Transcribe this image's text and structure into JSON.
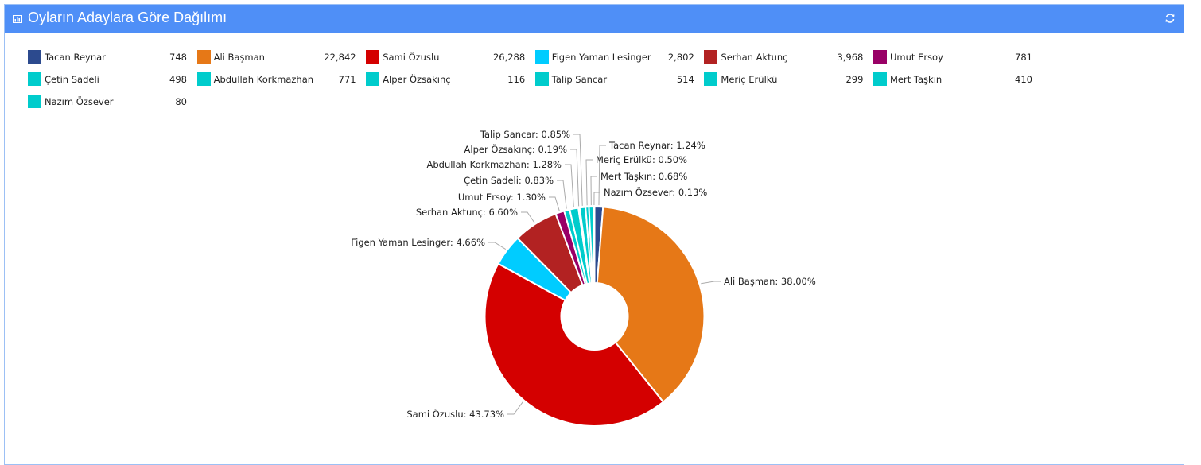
{
  "header": {
    "title": "Oyların Adaylara Göre Dağılımı",
    "icon": "bar-chart-icon",
    "refresh_icon": "refresh-icon"
  },
  "chart_data": {
    "type": "pie",
    "donut": true,
    "title": "Oyların Adaylara Göre Dağılımı",
    "legend_placement": "top",
    "series": [
      {
        "name": "Tacan Reynar",
        "value": 748,
        "value_label": "748",
        "percent_label": "1.24%",
        "color": "#2c4a8e"
      },
      {
        "name": "Ali Başman",
        "value": 22842,
        "value_label": "22,842",
        "percent_label": "38.00%",
        "color": "#e67817"
      },
      {
        "name": "Sami Özuslu",
        "value": 26288,
        "value_label": "26,288",
        "percent_label": "43.73%",
        "color": "#d40000"
      },
      {
        "name": "Figen Yaman Lesinger",
        "value": 2802,
        "value_label": "2,802",
        "percent_label": "4.66%",
        "color": "#00ccff"
      },
      {
        "name": "Serhan Aktunç",
        "value": 3968,
        "value_label": "3,968",
        "percent_label": "6.60%",
        "color": "#b22222"
      },
      {
        "name": "Umut Ersoy",
        "value": 781,
        "value_label": "781",
        "percent_label": "1.30%",
        "color": "#990066"
      },
      {
        "name": "Çetin Sadeli",
        "value": 498,
        "value_label": "498",
        "percent_label": "0.83%",
        "color": "#00cccc"
      },
      {
        "name": "Abdullah Korkmazhan",
        "value": 771,
        "value_label": "771",
        "percent_label": "1.28%",
        "color": "#00cccc"
      },
      {
        "name": "Alper Özsakınç",
        "value": 116,
        "value_label": "116",
        "percent_label": "0.19%",
        "color": "#00cccc"
      },
      {
        "name": "Talip Sancar",
        "value": 514,
        "value_label": "514",
        "percent_label": "0.85%",
        "color": "#00cccc"
      },
      {
        "name": "Meriç Erülkü",
        "value": 299,
        "value_label": "299",
        "percent_label": "0.50%",
        "color": "#00cccc"
      },
      {
        "name": "Mert Taşkın",
        "value": 410,
        "value_label": "410",
        "percent_label": "0.68%",
        "color": "#00cccc"
      },
      {
        "name": "Nazım Özsever",
        "value": 80,
        "value_label": "80",
        "percent_label": "0.13%",
        "color": "#00cccc"
      }
    ]
  }
}
